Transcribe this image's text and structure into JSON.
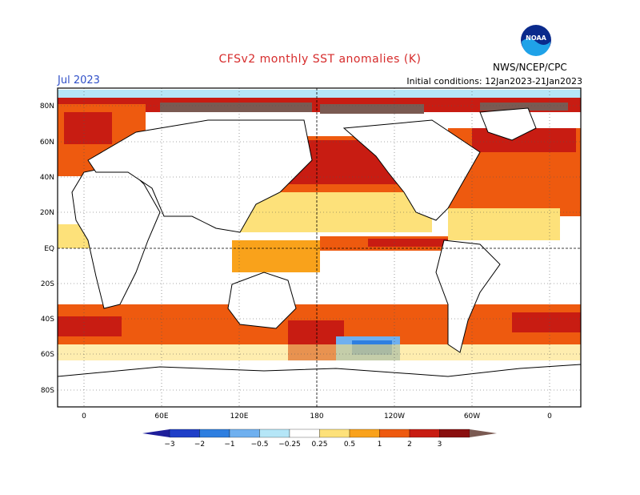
{
  "header": {
    "title": "CFSv2 monthly SST anomalies (K)",
    "month": "Jul 2023",
    "initial_conditions": "Initial conditions: 12Jan2023-21Jan2023",
    "org": "NWS/NCEP/CPC",
    "logo_text": "NOAA"
  },
  "map": {
    "lat_labels": [
      "80N",
      "60N",
      "40N",
      "20N",
      "EQ",
      "20S",
      "40S",
      "60S",
      "80S"
    ],
    "lon_labels": [
      "0",
      "60E",
      "120E",
      "180",
      "120W",
      "60W",
      "0"
    ]
  },
  "colorbar": {
    "labels": [
      "−3",
      "−2",
      "−1",
      "−0.5",
      "−0.25",
      "0.25",
      "0.5",
      "1",
      "2",
      "3"
    ],
    "colors": [
      "#1e1e9a",
      "#1f3fc8",
      "#2e7fe0",
      "#6fb0ef",
      "#b5e6f7",
      "#ffffff",
      "#fde17a",
      "#f9a21b",
      "#ee5a0f",
      "#c81c12",
      "#8a0f0f",
      "#7a5a52"
    ]
  }
}
